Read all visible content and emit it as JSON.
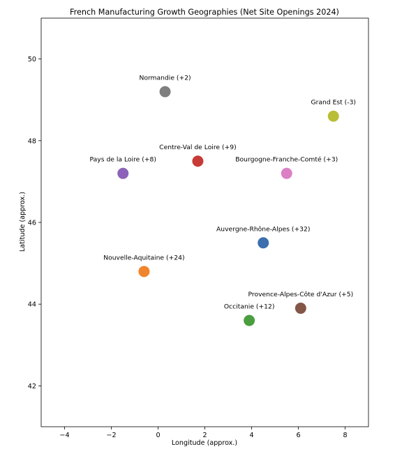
{
  "chart_data": {
    "type": "scatter",
    "title": "French Manufacturing Growth Geographies (Net Site Openings 2024)",
    "xlabel": "Longitude (approx.)",
    "ylabel": "Latitude (approx.)",
    "xlim": [
      -5,
      9
    ],
    "ylim": [
      41,
      51
    ],
    "xticks": [
      -4,
      -2,
      0,
      2,
      4,
      6,
      8
    ],
    "xtick_labels": [
      "−4",
      "−2",
      "0",
      "2",
      "4",
      "6",
      "8"
    ],
    "yticks": [
      42,
      44,
      46,
      48,
      50
    ],
    "ytick_labels": [
      "42",
      "44",
      "46",
      "48",
      "50"
    ],
    "grid": false,
    "points": [
      {
        "label": "Auvergne-Rhône-Alpes (+32)",
        "x": 4.5,
        "y": 45.5,
        "color": "#3b6fad"
      },
      {
        "label": "Nouvelle-Aquitaine (+24)",
        "x": -0.6,
        "y": 44.8,
        "color": "#f0852d"
      },
      {
        "label": "Occitanie (+12)",
        "x": 3.9,
        "y": 43.6,
        "color": "#4a9e3f"
      },
      {
        "label": "Centre-Val de Loire (+9)",
        "x": 1.7,
        "y": 47.5,
        "color": "#c83a36"
      },
      {
        "label": "Pays de la Loire (+8)",
        "x": -1.5,
        "y": 47.2,
        "color": "#8c63b8"
      },
      {
        "label": "Provence-Alpes-Côte d'Azur (+5)",
        "x": 6.1,
        "y": 43.9,
        "color": "#845648"
      },
      {
        "label": "Bourgogne-Franche-Comté (+3)",
        "x": 5.5,
        "y": 47.2,
        "color": "#dc80c6"
      },
      {
        "label": "Normandie (+2)",
        "x": 0.3,
        "y": 49.2,
        "color": "#7f7f7f"
      },
      {
        "label": "Grand Est (-3)",
        "x": 7.5,
        "y": 48.6,
        "color": "#b9be37"
      }
    ]
  }
}
